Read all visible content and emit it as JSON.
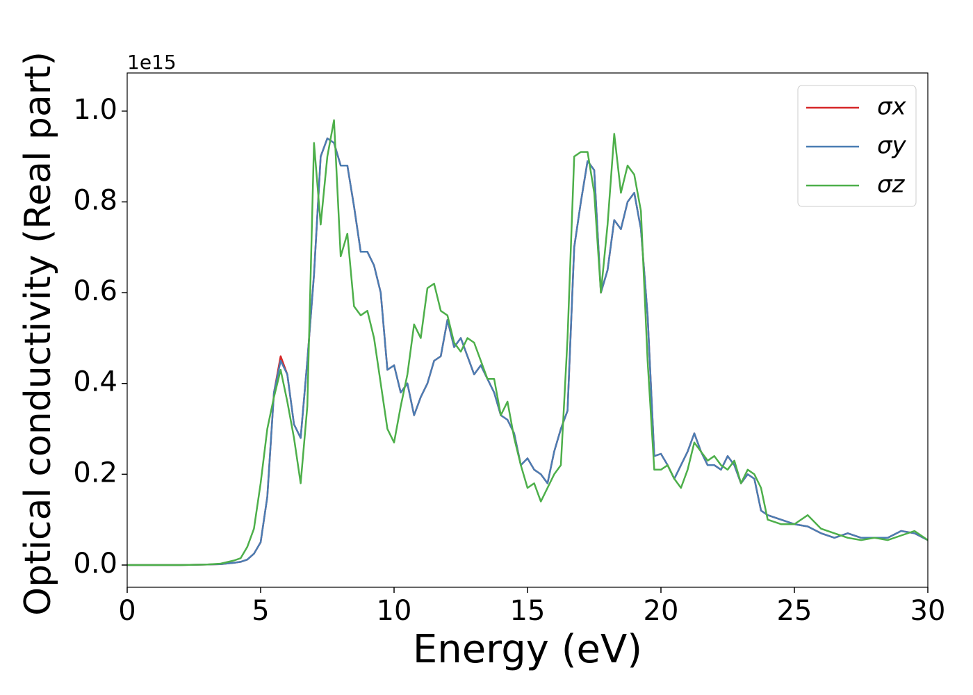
{
  "chart_data": {
    "type": "line",
    "xlabel": "Energy (eV)",
    "ylabel": "Optical conductivity (Real part)",
    "y_offset_text": "1e15",
    "x": [
      0,
      1,
      2,
      3,
      3.5,
      4,
      4.25,
      4.5,
      4.75,
      5,
      5.25,
      5.5,
      5.75,
      6,
      6.25,
      6.5,
      6.75,
      7,
      7.25,
      7.5,
      7.75,
      8,
      8.25,
      8.5,
      8.75,
      9,
      9.25,
      9.5,
      9.75,
      10,
      10.25,
      10.5,
      10.75,
      11,
      11.25,
      11.5,
      11.75,
      12,
      12.25,
      12.5,
      12.75,
      13,
      13.25,
      13.5,
      13.75,
      14,
      14.25,
      14.5,
      14.75,
      15,
      15.25,
      15.5,
      15.75,
      16,
      16.25,
      16.5,
      16.75,
      17,
      17.25,
      17.5,
      17.75,
      18,
      18.25,
      18.5,
      18.75,
      19,
      19.25,
      19.5,
      19.75,
      20,
      20.25,
      20.5,
      20.75,
      21,
      21.25,
      21.5,
      21.75,
      22,
      22.25,
      22.5,
      22.75,
      23,
      23.25,
      23.5,
      23.75,
      24,
      24.5,
      25,
      25.5,
      26,
      26.5,
      27,
      27.5,
      28,
      28.5,
      29,
      29.5,
      30
    ],
    "series": [
      {
        "name": "σx",
        "color": "#d62728",
        "values": [
          0,
          0,
          0,
          0.001,
          0.002,
          0.005,
          0.007,
          0.012,
          0.025,
          0.05,
          0.15,
          0.38,
          0.46,
          0.42,
          0.31,
          0.28,
          0.45,
          0.64,
          0.9,
          0.94,
          0.93,
          0.88,
          0.88,
          0.79,
          0.69,
          0.69,
          0.66,
          0.6,
          0.43,
          0.44,
          0.38,
          0.4,
          0.33,
          0.37,
          0.4,
          0.45,
          0.46,
          0.54,
          0.48,
          0.5,
          0.46,
          0.42,
          0.44,
          0.41,
          0.38,
          0.33,
          0.32,
          0.29,
          0.22,
          0.235,
          0.21,
          0.2,
          0.18,
          0.25,
          0.3,
          0.34,
          0.7,
          0.8,
          0.89,
          0.87,
          0.6,
          0.65,
          0.76,
          0.74,
          0.8,
          0.82,
          0.74,
          0.55,
          0.24,
          0.245,
          0.22,
          0.19,
          0.22,
          0.25,
          0.29,
          0.25,
          0.22,
          0.22,
          0.21,
          0.24,
          0.22,
          0.18,
          0.2,
          0.19,
          0.12,
          0.11,
          0.1,
          0.09,
          0.085,
          0.07,
          0.06,
          0.07,
          0.06,
          0.06,
          0.06,
          0.075,
          0.07,
          0.055
        ]
      },
      {
        "name": "σy",
        "color": "#4a7db3",
        "values": [
          0,
          0,
          0,
          0.001,
          0.002,
          0.005,
          0.007,
          0.012,
          0.025,
          0.05,
          0.15,
          0.38,
          0.45,
          0.42,
          0.31,
          0.28,
          0.45,
          0.64,
          0.9,
          0.94,
          0.93,
          0.88,
          0.88,
          0.79,
          0.69,
          0.69,
          0.66,
          0.6,
          0.43,
          0.44,
          0.38,
          0.4,
          0.33,
          0.37,
          0.4,
          0.45,
          0.46,
          0.54,
          0.48,
          0.5,
          0.46,
          0.42,
          0.44,
          0.41,
          0.38,
          0.33,
          0.32,
          0.29,
          0.22,
          0.235,
          0.21,
          0.2,
          0.18,
          0.25,
          0.3,
          0.34,
          0.7,
          0.8,
          0.89,
          0.87,
          0.6,
          0.65,
          0.76,
          0.74,
          0.8,
          0.82,
          0.74,
          0.55,
          0.24,
          0.245,
          0.22,
          0.19,
          0.22,
          0.25,
          0.29,
          0.25,
          0.22,
          0.22,
          0.21,
          0.24,
          0.22,
          0.18,
          0.2,
          0.19,
          0.12,
          0.11,
          0.1,
          0.09,
          0.085,
          0.07,
          0.06,
          0.07,
          0.06,
          0.06,
          0.06,
          0.075,
          0.07,
          0.055
        ]
      },
      {
        "name": "σz",
        "color": "#4daf4a",
        "values": [
          0,
          0,
          0,
          0.001,
          0.003,
          0.01,
          0.015,
          0.04,
          0.08,
          0.18,
          0.3,
          0.37,
          0.43,
          0.36,
          0.28,
          0.18,
          0.35,
          0.93,
          0.75,
          0.9,
          0.98,
          0.68,
          0.73,
          0.57,
          0.55,
          0.56,
          0.5,
          0.4,
          0.3,
          0.27,
          0.35,
          0.42,
          0.53,
          0.5,
          0.61,
          0.62,
          0.56,
          0.55,
          0.49,
          0.47,
          0.5,
          0.49,
          0.45,
          0.41,
          0.41,
          0.33,
          0.36,
          0.28,
          0.22,
          0.17,
          0.18,
          0.14,
          0.17,
          0.2,
          0.22,
          0.5,
          0.9,
          0.91,
          0.91,
          0.82,
          0.6,
          0.75,
          0.95,
          0.82,
          0.88,
          0.86,
          0.78,
          0.45,
          0.21,
          0.21,
          0.22,
          0.19,
          0.17,
          0.21,
          0.27,
          0.25,
          0.23,
          0.24,
          0.22,
          0.21,
          0.23,
          0.18,
          0.21,
          0.2,
          0.17,
          0.1,
          0.09,
          0.09,
          0.11,
          0.08,
          0.07,
          0.06,
          0.055,
          0.06,
          0.055,
          0.065,
          0.075,
          0.055
        ]
      }
    ],
    "xlim": [
      0,
      30
    ],
    "xticks": [
      0,
      5,
      10,
      15,
      20,
      25,
      30
    ],
    "ylim": [
      -0.049,
      1.084
    ],
    "yticks": [
      {
        "value": 0,
        "label": "0.0"
      },
      0.2,
      0.4,
      0.6,
      0.8,
      {
        "value": 1,
        "label": "1.0"
      }
    ],
    "legend": "upper right",
    "grid": false
  }
}
